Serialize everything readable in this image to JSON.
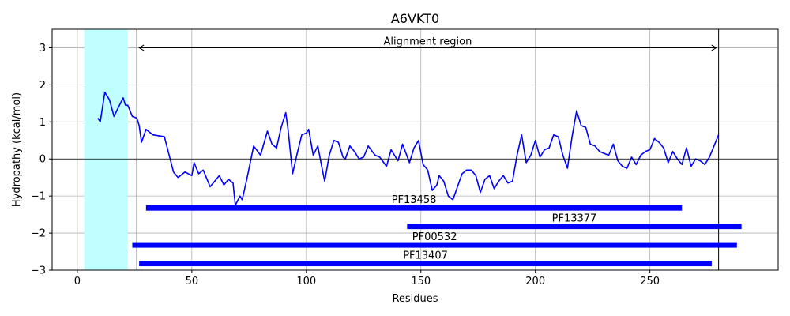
{
  "chart_data": {
    "type": "line",
    "title": "A6VKT0",
    "xlabel": "Residues",
    "ylabel": "Hydropathy (kcal/mol)",
    "xlim": [
      -11,
      306
    ],
    "ylim": [
      -3,
      3.5
    ],
    "xticks": [
      0,
      50,
      100,
      150,
      200,
      250
    ],
    "yticks": [
      -3,
      -2,
      -1,
      0,
      1,
      2,
      3
    ],
    "grid": true,
    "series": [
      {
        "color": "#0000ff",
        "x": [
          9,
          10,
          12,
          14,
          16,
          18,
          20,
          21,
          22,
          24,
          26,
          27,
          28,
          30,
          33,
          38,
          42,
          44,
          47,
          50,
          51,
          53,
          55,
          58,
          60,
          62,
          64,
          66,
          68,
          69,
          71,
          72,
          74,
          77,
          80,
          83,
          85,
          87,
          89,
          91,
          92,
          94,
          96,
          98,
          100,
          101,
          103,
          105,
          107,
          108,
          110,
          112,
          114,
          116,
          117,
          119,
          121,
          123,
          125,
          127,
          130,
          132,
          135,
          137,
          140,
          142,
          145,
          147,
          149,
          151,
          153,
          155,
          157,
          158,
          160,
          162,
          164,
          166,
          168,
          170,
          172,
          174,
          176,
          178,
          180,
          182,
          184,
          186,
          188,
          190,
          192,
          194,
          196,
          198,
          200,
          202,
          204,
          206,
          208,
          210,
          212,
          214,
          216,
          218,
          220,
          222,
          224,
          226,
          228,
          230,
          232,
          234,
          236,
          238,
          240,
          242,
          244,
          246,
          248,
          250,
          252,
          254,
          256,
          258,
          260,
          262,
          264,
          266,
          268,
          270,
          272,
          274,
          276,
          278,
          280
        ],
        "y": [
          1.1,
          1.0,
          1.8,
          1.6,
          1.15,
          1.4,
          1.65,
          1.45,
          1.45,
          1.15,
          1.1,
          0.9,
          0.45,
          0.8,
          0.65,
          0.6,
          -0.35,
          -0.5,
          -0.35,
          -0.45,
          -0.1,
          -0.4,
          -0.3,
          -0.75,
          -0.6,
          -0.45,
          -0.7,
          -0.55,
          -0.65,
          -1.25,
          -1.0,
          -1.1,
          -0.55,
          0.35,
          0.1,
          0.75,
          0.4,
          0.3,
          0.85,
          1.25,
          0.8,
          -0.4,
          0.15,
          0.65,
          0.7,
          0.8,
          0.1,
          0.35,
          -0.3,
          -0.6,
          0.1,
          0.5,
          0.45,
          0.05,
          0.0,
          0.35,
          0.2,
          0.0,
          0.05,
          0.35,
          0.1,
          0.05,
          -0.2,
          0.25,
          -0.05,
          0.4,
          -0.1,
          0.3,
          0.5,
          -0.15,
          -0.3,
          -0.85,
          -0.7,
          -0.45,
          -0.6,
          -1.0,
          -1.1,
          -0.75,
          -0.4,
          -0.3,
          -0.3,
          -0.45,
          -0.9,
          -0.55,
          -0.45,
          -0.8,
          -0.6,
          -0.45,
          -0.65,
          -0.6,
          0.1,
          0.65,
          -0.1,
          0.1,
          0.5,
          0.05,
          0.25,
          0.3,
          0.65,
          0.6,
          0.1,
          -0.25,
          0.6,
          1.3,
          0.9,
          0.85,
          0.4,
          0.35,
          0.2,
          0.15,
          0.1,
          0.4,
          -0.05,
          -0.2,
          -0.25,
          0.05,
          -0.15,
          0.1,
          0.2,
          0.25,
          0.55,
          0.45,
          0.3,
          -0.1,
          0.2,
          0.0,
          -0.15,
          0.3,
          -0.2,
          0.0,
          -0.05,
          -0.15,
          0.05,
          0.35,
          0.65
        ]
      }
    ],
    "highlight_band": {
      "x0": 3,
      "x1": 22,
      "color": "#c0ffff"
    },
    "vlines": [
      26,
      280
    ],
    "hline": 0,
    "arrow": {
      "x0": 27,
      "x1": 279,
      "y": 3.0,
      "label": "Alignment region"
    },
    "domains": [
      {
        "name": "PF13458",
        "x0": 30,
        "x1": 264,
        "y": -1.32
      },
      {
        "name": "PF13377",
        "x0": 144,
        "x1": 290,
        "y": -1.82
      },
      {
        "name": "PF00532",
        "x0": 24,
        "x1": 288,
        "y": -2.32
      },
      {
        "name": "PF13407",
        "x0": 27,
        "x1": 277,
        "y": -2.82
      }
    ]
  }
}
